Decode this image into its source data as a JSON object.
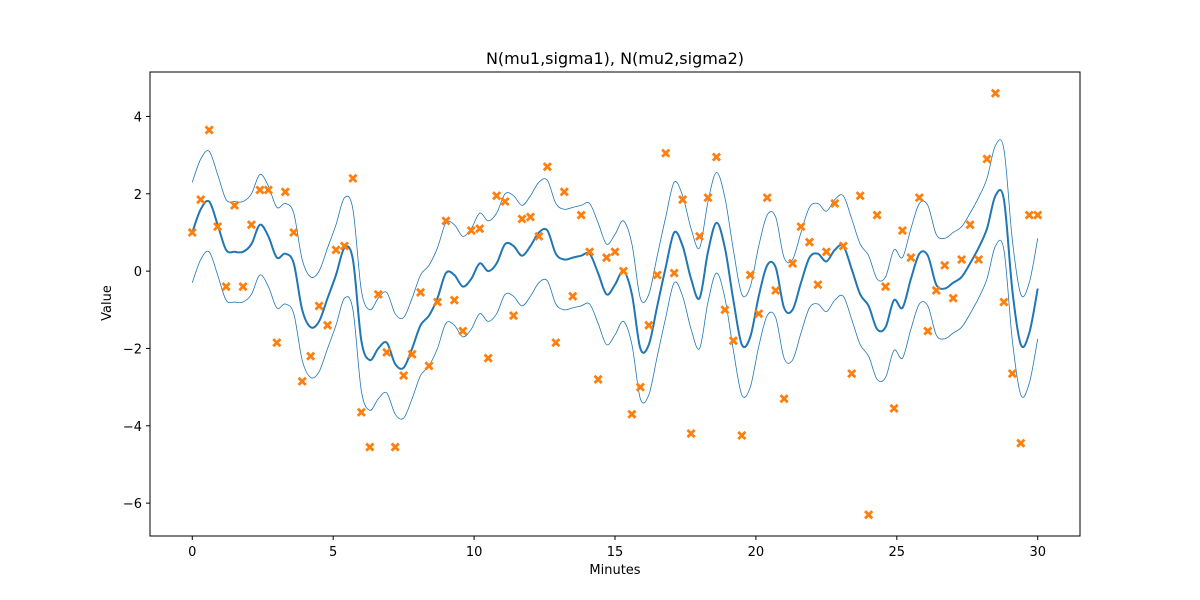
{
  "colors": {
    "mean_line": "#1f77b4",
    "band_line": "#1f77b4",
    "points": "#ff7f0e",
    "axes": "#000000",
    "background": "#ffffff"
  },
  "chart_data": {
    "type": "line",
    "title": "N(mu1,sigma1), N(mu2,sigma2)",
    "xlabel": "Minutes",
    "ylabel": "Value",
    "xlim": [
      -1.5,
      31.5
    ],
    "ylim": [
      -6.85,
      5.15
    ],
    "grid": false,
    "legend": "none",
    "xticks": [
      0,
      5,
      10,
      15,
      20,
      25,
      30
    ],
    "xtick_labels": [
      "0",
      "5",
      "10",
      "15",
      "20",
      "25",
      "30"
    ],
    "yticks": [
      4,
      2,
      0,
      -2,
      -4,
      -6
    ],
    "ytick_labels": [
      "4",
      "2",
      "0",
      "−2",
      "−4",
      "−6"
    ],
    "mean": {
      "x": [
        0,
        0.3,
        0.6,
        0.9,
        1.2,
        1.5,
        1.8,
        2.1,
        2.4,
        2.7,
        3.0,
        3.3,
        3.6,
        3.9,
        4.2,
        4.5,
        4.8,
        5.1,
        5.4,
        5.7,
        6.0,
        6.3,
        6.6,
        6.9,
        7.2,
        7.5,
        7.8,
        8.1,
        8.4,
        8.7,
        9.0,
        9.3,
        9.6,
        9.9,
        10.2,
        10.5,
        10.8,
        11.1,
        11.4,
        11.7,
        12.0,
        12.3,
        12.6,
        12.9,
        13.2,
        13.5,
        13.8,
        14.1,
        14.4,
        14.7,
        15.0,
        15.3,
        15.6,
        15.9,
        16.2,
        16.5,
        16.8,
        17.1,
        17.4,
        17.7,
        18.0,
        18.3,
        18.6,
        18.9,
        19.2,
        19.5,
        19.8,
        20.1,
        20.4,
        20.7,
        21.0,
        21.3,
        21.6,
        21.9,
        22.2,
        22.5,
        22.8,
        23.1,
        23.4,
        23.7,
        24.0,
        24.3,
        24.6,
        24.9,
        25.2,
        25.5,
        25.8,
        26.1,
        26.4,
        26.7,
        27.0,
        27.3,
        27.6,
        27.9,
        28.2,
        28.5,
        28.8,
        29.1,
        29.4,
        29.7,
        30.0
      ],
      "y": [
        1.0,
        1.6,
        1.8,
        1.2,
        0.55,
        0.5,
        0.5,
        0.7,
        1.2,
        0.9,
        0.35,
        0.45,
        0.2,
        -1.0,
        -1.45,
        -1.3,
        -0.7,
        -0.1,
        0.6,
        0.3,
        -1.8,
        -2.3,
        -2.0,
        -1.85,
        -2.4,
        -2.5,
        -2.0,
        -1.4,
        -1.15,
        -0.7,
        -0.05,
        -0.1,
        -0.4,
        -0.2,
        0.2,
        0.0,
        0.2,
        0.7,
        0.65,
        0.4,
        0.65,
        1.0,
        1.05,
        0.45,
        0.3,
        0.35,
        0.4,
        0.45,
        -0.05,
        -0.6,
        -0.35,
        0.0,
        -0.6,
        -2.0,
        -1.9,
        -0.9,
        0.1,
        1.0,
        0.65,
        -0.2,
        -0.7,
        0.5,
        1.25,
        0.6,
        -0.75,
        -1.9,
        -1.7,
        -0.65,
        0.15,
        0.1,
        -0.95,
        -1.0,
        -0.3,
        0.35,
        0.45,
        0.25,
        0.55,
        0.65,
        0.05,
        -0.6,
        -0.9,
        -1.5,
        -1.45,
        -0.75,
        -0.95,
        -0.2,
        0.45,
        0.4,
        -0.35,
        -0.45,
        -0.3,
        -0.15,
        0.2,
        0.6,
        1.1,
        1.95,
        1.85,
        -0.5,
        -1.9,
        -1.6,
        -0.45
      ]
    },
    "band_offset": 1.3,
    "points": {
      "x": [
        0.0,
        0.3,
        0.6,
        0.9,
        1.2,
        1.5,
        1.8,
        2.1,
        2.4,
        2.7,
        3.0,
        3.3,
        3.6,
        3.9,
        4.2,
        4.5,
        4.8,
        5.1,
        5.4,
        5.7,
        6.0,
        6.3,
        6.6,
        6.9,
        7.2,
        7.5,
        7.8,
        8.1,
        8.4,
        8.7,
        9.0,
        9.3,
        9.6,
        9.9,
        10.2,
        10.5,
        10.8,
        11.1,
        11.4,
        11.7,
        12.0,
        12.3,
        12.6,
        12.9,
        13.2,
        13.5,
        13.8,
        14.1,
        14.4,
        14.7,
        15.0,
        15.3,
        15.6,
        15.9,
        16.2,
        16.5,
        16.8,
        17.1,
        17.4,
        17.7,
        18.0,
        18.3,
        18.6,
        18.9,
        19.2,
        19.5,
        19.8,
        20.1,
        20.4,
        20.7,
        21.0,
        21.3,
        21.6,
        21.9,
        22.2,
        22.5,
        22.8,
        23.1,
        23.4,
        23.7,
        24.0,
        24.3,
        24.6,
        24.9,
        25.2,
        25.5,
        25.8,
        26.1,
        26.4,
        26.7,
        27.0,
        27.3,
        27.6,
        27.9,
        28.2,
        28.5,
        28.8,
        29.1,
        29.4,
        29.7,
        30.0
      ],
      "y": [
        1.0,
        1.85,
        3.65,
        1.15,
        -0.4,
        1.7,
        -0.4,
        1.2,
        2.1,
        2.1,
        -1.85,
        2.05,
        1.0,
        -2.85,
        -2.2,
        -0.9,
        -1.4,
        0.55,
        0.65,
        2.4,
        -3.65,
        -4.55,
        -0.6,
        -2.1,
        -4.55,
        -2.7,
        -2.15,
        -0.55,
        -2.45,
        -0.8,
        1.3,
        -0.75,
        -1.55,
        1.05,
        1.1,
        -2.25,
        1.95,
        1.8,
        -1.15,
        1.35,
        1.4,
        0.9,
        2.7,
        -1.85,
        2.05,
        -0.65,
        1.45,
        0.5,
        -2.8,
        0.35,
        0.5,
        0.0,
        -3.7,
        -3.0,
        -1.4,
        -0.1,
        3.05,
        -0.05,
        1.85,
        -4.2,
        0.9,
        1.9,
        2.95,
        -1.0,
        -1.8,
        -4.25,
        -0.1,
        -1.1,
        1.9,
        -0.5,
        -3.3,
        0.2,
        1.15,
        0.75,
        -0.35,
        0.5,
        1.75,
        0.65,
        -2.65,
        1.95,
        -6.3,
        1.45,
        -0.4,
        -3.55,
        1.05,
        0.35,
        1.9,
        -1.55,
        -0.5,
        0.15,
        -0.7,
        0.3,
        1.2,
        0.3,
        2.9,
        4.6,
        -0.8,
        -2.65,
        -4.45,
        1.45,
        1.45
      ]
    }
  }
}
